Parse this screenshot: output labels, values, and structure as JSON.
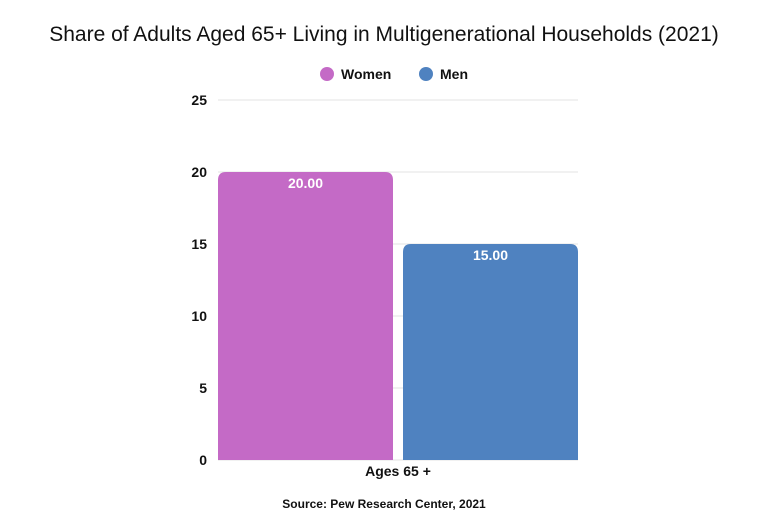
{
  "chart_data": {
    "type": "bar",
    "title": "Share of Adults Aged 65+ Living in Multigenerational Households (2021)",
    "categories": [
      "Ages 65 +"
    ],
    "series": [
      {
        "name": "Women",
        "values": [
          20.0
        ],
        "color": "#c46ac6"
      },
      {
        "name": "Men",
        "values": [
          15.0
        ],
        "color": "#4f82c0"
      }
    ],
    "data_labels": [
      "20.00",
      "15.00"
    ],
    "ylim": [
      0,
      25
    ],
    "yticks": [
      "0",
      "5",
      "10",
      "15",
      "20",
      "25"
    ],
    "grid": true,
    "legend_position": "top-center",
    "source": "Source: Pew Research Center, 2021"
  }
}
